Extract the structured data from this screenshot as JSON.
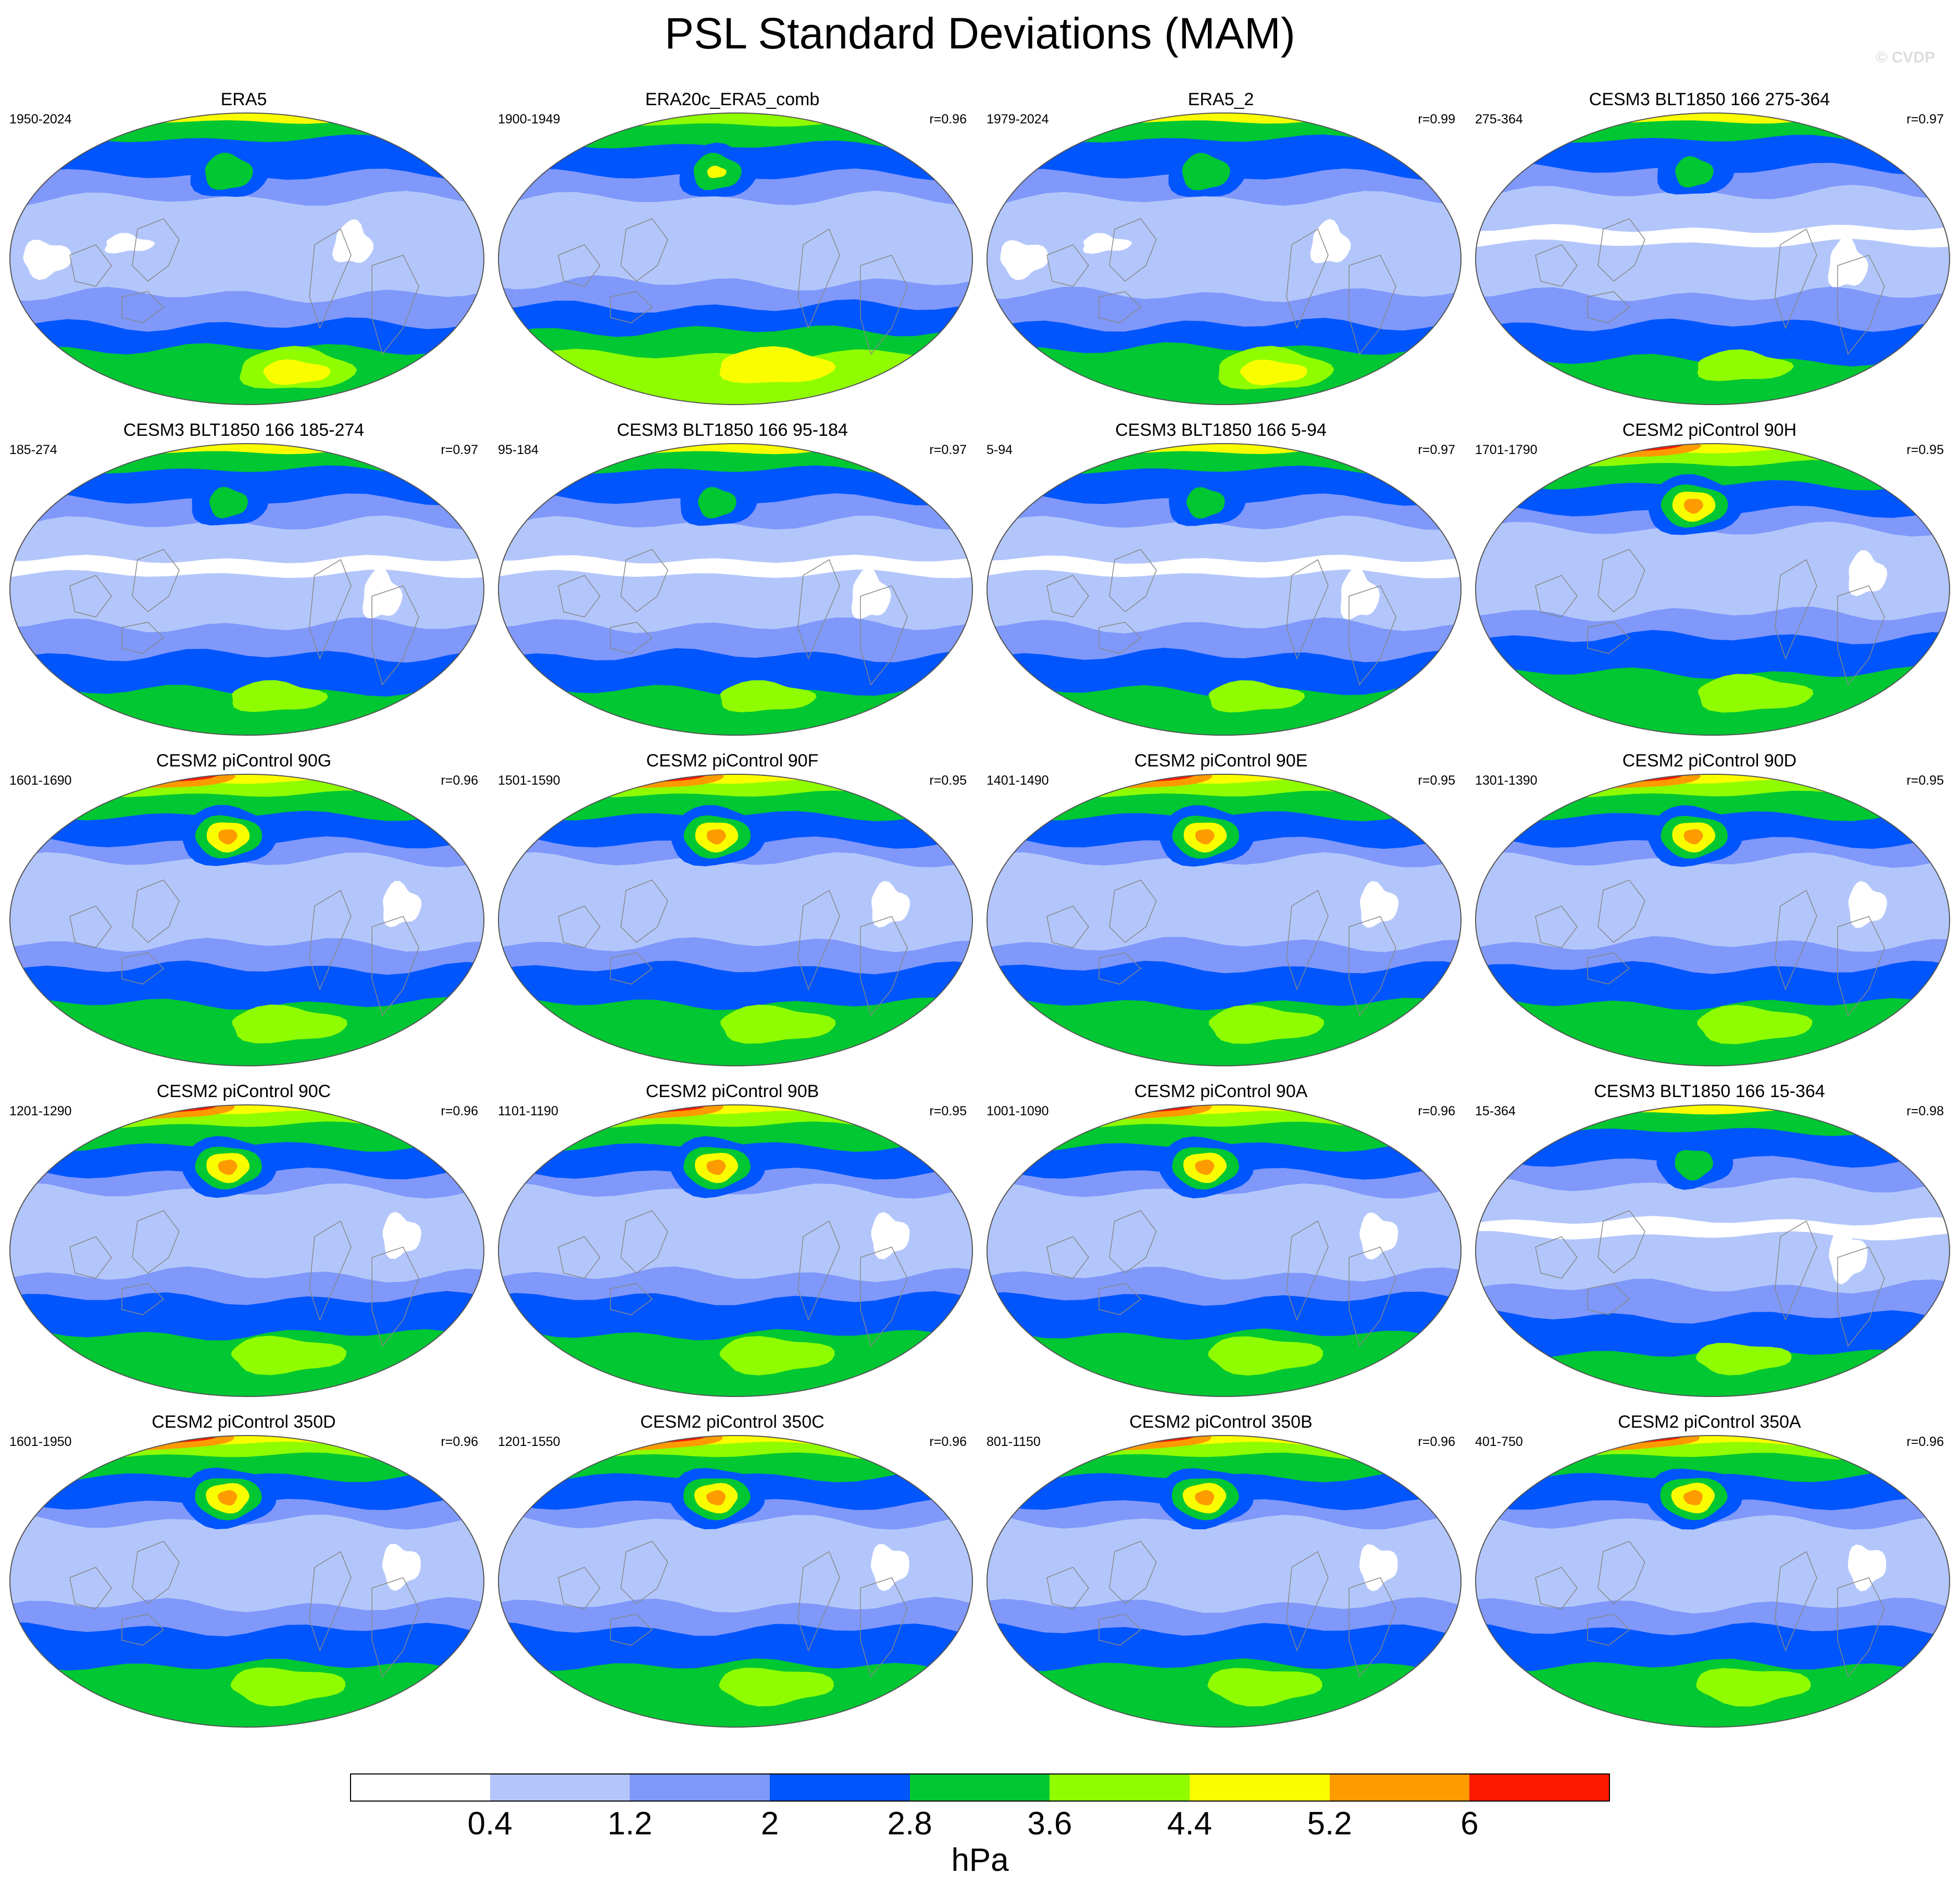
{
  "title": "PSL Standard Deviations (MAM)",
  "copyright": "© CVDP",
  "colorbar": {
    "units": "hPa",
    "labels": [
      "0.4",
      "1.2",
      "2",
      "2.8",
      "3.6",
      "4.4",
      "5.2",
      "6"
    ],
    "colors": [
      "#ffffff",
      "#b3c6fb",
      "#7f98fa",
      "#0155fd",
      "#00c732",
      "#8ffd00",
      "#f9fd00",
      "#fd9b00",
      "#fd1800"
    ]
  },
  "panels": [
    {
      "title": "ERA5",
      "years": "1950-2024",
      "corr": "",
      "variant": "obs"
    },
    {
      "title": "ERA20c_ERA5_comb",
      "years": "1900-1949",
      "corr": "r=0.96",
      "variant": "obs20c"
    },
    {
      "title": "ERA5_2",
      "years": "1979-2024",
      "corr": "r=0.99",
      "variant": "obs"
    },
    {
      "title": "CESM3 BLT1850 166 275-364",
      "years": "275-364",
      "corr": "r=0.97",
      "variant": "cesm3"
    },
    {
      "title": "CESM3 BLT1850 166 185-274",
      "years": "185-274",
      "corr": "r=0.97",
      "variant": "cesm3"
    },
    {
      "title": "CESM3 BLT1850 166 95-184",
      "years": "95-184",
      "corr": "r=0.97",
      "variant": "cesm3"
    },
    {
      "title": "CESM3 BLT1850 166 5-94",
      "years": "5-94",
      "corr": "r=0.97",
      "variant": "cesm3"
    },
    {
      "title": "CESM2 piControl 90H",
      "years": "1701-1790",
      "corr": "r=0.95",
      "variant": "cesm2"
    },
    {
      "title": "CESM2 piControl 90G",
      "years": "1601-1690",
      "corr": "r=0.96",
      "variant": "cesm2"
    },
    {
      "title": "CESM2 piControl 90F",
      "years": "1501-1590",
      "corr": "r=0.95",
      "variant": "cesm2"
    },
    {
      "title": "CESM2 piControl 90E",
      "years": "1401-1490",
      "corr": "r=0.95",
      "variant": "cesm2"
    },
    {
      "title": "CESM2 piControl 90D",
      "years": "1301-1390",
      "corr": "r=0.95",
      "variant": "cesm2"
    },
    {
      "title": "CESM2 piControl 90C",
      "years": "1201-1290",
      "corr": "r=0.96",
      "variant": "cesm2"
    },
    {
      "title": "CESM2 piControl 90B",
      "years": "1101-1190",
      "corr": "r=0.95",
      "variant": "cesm2"
    },
    {
      "title": "CESM2 piControl 90A",
      "years": "1001-1090",
      "corr": "r=0.96",
      "variant": "cesm2"
    },
    {
      "title": "CESM3 BLT1850 166 15-364",
      "years": "15-364",
      "corr": "r=0.98",
      "variant": "cesm3"
    },
    {
      "title": "CESM2 piControl 350D",
      "years": "1601-1950",
      "corr": "r=0.96",
      "variant": "cesm2"
    },
    {
      "title": "CESM2 piControl 350C",
      "years": "1201-1550",
      "corr": "r=0.96",
      "variant": "cesm2"
    },
    {
      "title": "CESM2 piControl 350B",
      "years": "801-1150",
      "corr": "r=0.96",
      "variant": "cesm2"
    },
    {
      "title": "CESM2 piControl 350A",
      "years": "401-750",
      "corr": "r=0.96",
      "variant": "cesm2"
    }
  ]
}
